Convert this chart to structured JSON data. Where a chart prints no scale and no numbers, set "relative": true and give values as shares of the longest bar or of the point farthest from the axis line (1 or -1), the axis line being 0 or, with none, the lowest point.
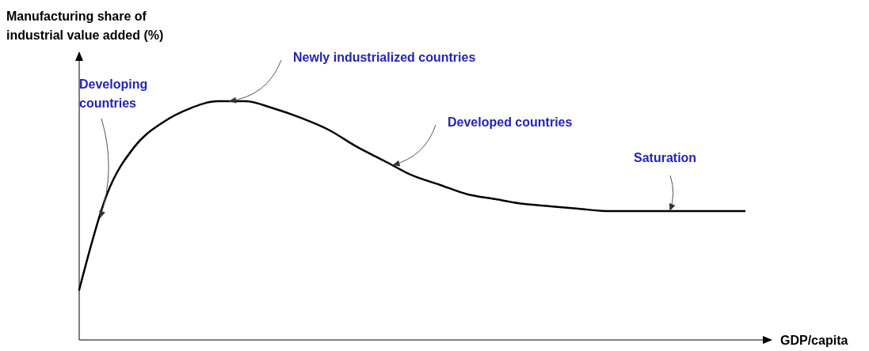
{
  "chart_data": {
    "type": "line",
    "relative": true,
    "xlabel": "GDP/capita",
    "ylabel": "Manufacturing share of industrial value added (%)",
    "categories": [
      null,
      null,
      null,
      null,
      null,
      null,
      null,
      null,
      null,
      null,
      null,
      null,
      null,
      null,
      null,
      null,
      null,
      null,
      null,
      null,
      null,
      null,
      null,
      null,
      null
    ],
    "series": [
      {
        "color": "#000000",
        "values": [
          0.21,
          0.61,
          0.81,
          0.91,
          0.97,
          1,
          1,
          0.97,
          0.93,
          0.88,
          0.81,
          0.75,
          0.69,
          0.65,
          0.61,
          0.59,
          0.57,
          0.56,
          0.55,
          0.54,
          0.54,
          0.54,
          0.54,
          0.54,
          0.54
        ]
      }
    ],
    "annotations": [
      "Developing countries",
      "Newly industrialized countries",
      "Developed countries",
      "Saturation"
    ]
  }
}
